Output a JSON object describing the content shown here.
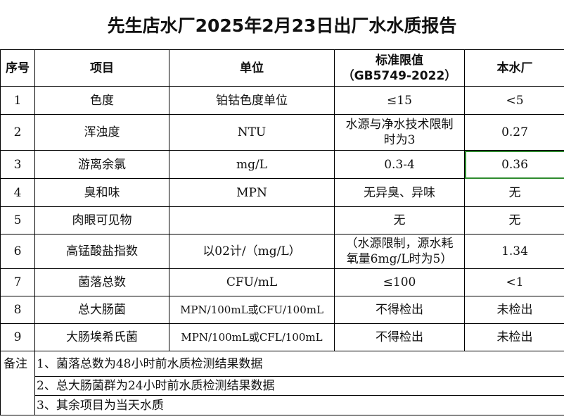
{
  "title": "先生店水厂2025年2月23日出厂水水质报告",
  "headers": {
    "no": "序号",
    "item": "项目",
    "unit": "单位",
    "standard_line1": "标准限值",
    "standard_line2": "（GB5749-2022）",
    "plant": "本水厂"
  },
  "rows": [
    {
      "no": "1",
      "item": "色度",
      "unit": "铂钴色度单位",
      "standard": "≤15",
      "value": "<5"
    },
    {
      "no": "2",
      "item": "浑浊度",
      "unit": "NTU",
      "standard": "水源与净水技术限制时为3",
      "value": "0.27"
    },
    {
      "no": "3",
      "item": "游离余氯",
      "unit": "mg/L",
      "standard": "0.3-4",
      "value": "0.36"
    },
    {
      "no": "4",
      "item": "臭和味",
      "unit": "MPN",
      "standard": "无异臭、异味",
      "value": "无"
    },
    {
      "no": "5",
      "item": "肉眼可见物",
      "unit": "",
      "standard": "无",
      "value": "无"
    },
    {
      "no": "6",
      "item": "高锰酸盐指数",
      "unit": "以02计/（mg/L）",
      "standard": "（水源限制，源水耗氧量6mg/L时为5）",
      "value": "1.34"
    },
    {
      "no": "7",
      "item": "菌落总数",
      "unit": "CFU/mL",
      "standard": "≤100",
      "value": "<1"
    },
    {
      "no": "8",
      "item": "总大肠菌",
      "unit": "MPN/100mL或CFU/100mL",
      "standard": "不得检出",
      "value": "未检出"
    },
    {
      "no": "9",
      "item": "大肠埃希氏菌",
      "unit": "MPN/100mL或CFL/100mL",
      "standard": "不得检出",
      "value": "未检出"
    }
  ],
  "notes": {
    "label": "备注",
    "items": [
      "1、菌落总数为48小时前水质检测结果数据",
      "2、总大肠菌群为24小时前水质检测结果数据",
      "3、其余项目为当天水质"
    ]
  },
  "colors": {
    "selection": "#2e8b2e"
  }
}
